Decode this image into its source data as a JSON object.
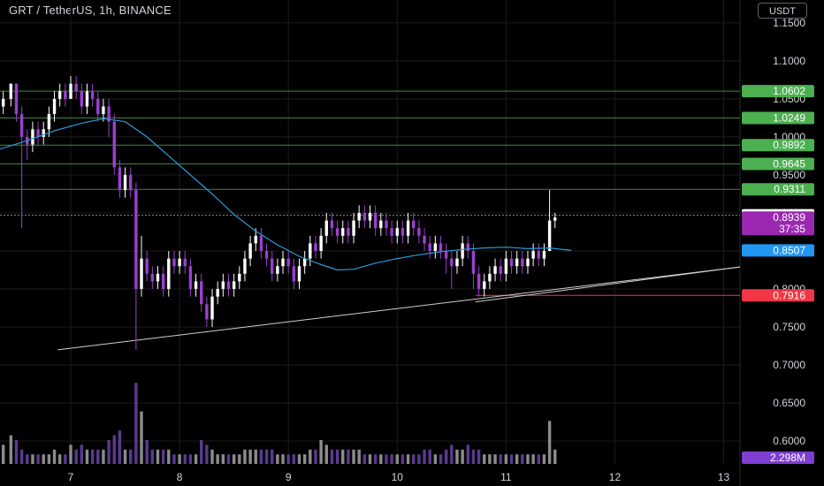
{
  "header": {
    "title": "GRT / TetherUS, 1h, BINANCE",
    "currency_button": "USDT"
  },
  "colors": {
    "bull": "#ffffff",
    "bear": "#9b3fd0",
    "ma": "#2a9ad8",
    "support": "#3a8a3a",
    "support_label": "#4caf50",
    "red_label": "#f23645",
    "blue_label": "#2196f3",
    "price_label": "#9c27b0",
    "volume_label": "#7e3fd0",
    "trend": "#cfcfcf"
  },
  "chart_data": {
    "type": "candlestick",
    "title": "GRT / TetherUS, 1h, BINANCE",
    "x_ticks": [
      "7",
      "8",
      "9",
      "10",
      "11",
      "12",
      "13"
    ],
    "y_ticks": [
      "1.1500",
      "1.1000",
      "1.0500",
      "1.0000",
      "0.9500",
      "0.9000",
      "0.8500",
      "0.8000",
      "0.7500",
      "0.7000",
      "0.6500",
      "0.6000"
    ],
    "ylim": [
      0.57,
      1.18
    ],
    "xlim": [
      6.35,
      13.15
    ],
    "levels": [
      {
        "value": 1.0602,
        "label": "1.0602",
        "style": "support"
      },
      {
        "value": 1.0249,
        "label": "1.0249",
        "style": "support"
      },
      {
        "value": 0.9892,
        "label": "0.9892",
        "style": "support"
      },
      {
        "value": 0.9645,
        "label": "0.9645",
        "style": "support"
      },
      {
        "value": 0.9311,
        "label": "0.9311",
        "style": "support"
      },
      {
        "value": 0.8969,
        "label": "0.8969",
        "style": "white"
      },
      {
        "value": 0.8939,
        "label": "0.8939",
        "style": "price"
      },
      {
        "value": 0.8507,
        "label": "0.8507",
        "style": "ma"
      },
      {
        "value": 0.7916,
        "label": "0.7916",
        "style": "red"
      }
    ],
    "countdown": "37:35",
    "volume_label": "2.298M",
    "trendlines": [
      {
        "x1": 6.88,
        "y1": 0.72,
        "x2": 13.15,
        "y2": 0.829
      },
      {
        "x1": 10.72,
        "y1": 0.783,
        "x2": 13.15,
        "y2": 0.829
      }
    ],
    "moving_average": [
      [
        6.35,
        0.984
      ],
      [
        6.6,
        0.995
      ],
      [
        6.85,
        1.008
      ],
      [
        7.1,
        1.018
      ],
      [
        7.3,
        1.024
      ],
      [
        7.5,
        1.02
      ],
      [
        7.7,
        1.0
      ],
      [
        7.9,
        0.975
      ],
      [
        8.1,
        0.95
      ],
      [
        8.3,
        0.925
      ],
      [
        8.5,
        0.898
      ],
      [
        8.7,
        0.876
      ],
      [
        8.9,
        0.858
      ],
      [
        9.1,
        0.843
      ],
      [
        9.3,
        0.832
      ],
      [
        9.45,
        0.825
      ],
      [
        9.6,
        0.826
      ],
      [
        9.8,
        0.834
      ],
      [
        10.0,
        0.84
      ],
      [
        10.2,
        0.845
      ],
      [
        10.4,
        0.849
      ],
      [
        10.6,
        0.852
      ],
      [
        10.8,
        0.854
      ],
      [
        11.0,
        0.855
      ],
      [
        11.2,
        0.853
      ],
      [
        11.4,
        0.854
      ],
      [
        11.6,
        0.8507
      ]
    ],
    "volume_scale": 0.9,
    "candles": [
      [
        6.38,
        1.04,
        1.05,
        1.03,
        1.06,
        0.4
      ],
      [
        6.45,
        1.05,
        1.07,
        1.04,
        1.07,
        0.6
      ],
      [
        6.5,
        1.07,
        1.03,
        1.02,
        1.07,
        0.5
      ],
      [
        6.55,
        1.03,
        1.0,
        0.88,
        1.04,
        0.3
      ],
      [
        6.6,
        1.0,
        0.99,
        0.97,
        1.01,
        0.2
      ],
      [
        6.65,
        0.99,
        1.01,
        0.98,
        1.02,
        0.2
      ],
      [
        6.7,
        1.01,
        1.0,
        0.99,
        1.02,
        0.2
      ],
      [
        6.75,
        1.0,
        1.01,
        0.99,
        1.02,
        0.2
      ],
      [
        6.8,
        1.01,
        1.03,
        1.0,
        1.04,
        0.2
      ],
      [
        6.85,
        1.03,
        1.05,
        1.02,
        1.06,
        0.3
      ],
      [
        6.9,
        1.05,
        1.06,
        1.04,
        1.07,
        0.2
      ],
      [
        6.95,
        1.06,
        1.05,
        1.04,
        1.07,
        0.2
      ],
      [
        7.0,
        1.05,
        1.07,
        1.05,
        1.08,
        0.4
      ],
      [
        7.05,
        1.07,
        1.06,
        1.05,
        1.08,
        0.3
      ],
      [
        7.1,
        1.06,
        1.04,
        1.03,
        1.07,
        0.4
      ],
      [
        7.15,
        1.04,
        1.06,
        1.03,
        1.07,
        0.3
      ],
      [
        7.2,
        1.06,
        1.05,
        1.04,
        1.07,
        0.3
      ],
      [
        7.25,
        1.05,
        1.03,
        1.02,
        1.06,
        0.3
      ],
      [
        7.3,
        1.03,
        1.04,
        1.02,
        1.05,
        0.3
      ],
      [
        7.35,
        1.04,
        1.02,
        1.0,
        1.05,
        0.5
      ],
      [
        7.4,
        1.02,
        0.96,
        0.95,
        1.03,
        0.6
      ],
      [
        7.45,
        0.96,
        0.93,
        0.92,
        0.97,
        0.7
      ],
      [
        7.5,
        0.93,
        0.95,
        0.92,
        0.96,
        0.3
      ],
      [
        7.55,
        0.95,
        0.93,
        0.92,
        0.96,
        0.3
      ],
      [
        7.6,
        0.93,
        0.8,
        0.72,
        0.94,
        1.7
      ],
      [
        7.65,
        0.8,
        0.84,
        0.79,
        0.87,
        1.1
      ],
      [
        7.7,
        0.84,
        0.82,
        0.81,
        0.85,
        0.5
      ],
      [
        7.75,
        0.82,
        0.81,
        0.8,
        0.83,
        0.3
      ],
      [
        7.8,
        0.81,
        0.82,
        0.8,
        0.83,
        0.3
      ],
      [
        7.85,
        0.82,
        0.8,
        0.79,
        0.83,
        0.3
      ],
      [
        7.9,
        0.8,
        0.84,
        0.79,
        0.85,
        0.3
      ],
      [
        7.95,
        0.84,
        0.83,
        0.82,
        0.85,
        0.2
      ],
      [
        8.0,
        0.83,
        0.84,
        0.82,
        0.85,
        0.2
      ],
      [
        8.05,
        0.84,
        0.83,
        0.82,
        0.85,
        0.2
      ],
      [
        8.1,
        0.83,
        0.8,
        0.79,
        0.84,
        0.2
      ],
      [
        8.15,
        0.8,
        0.81,
        0.79,
        0.82,
        0.2
      ],
      [
        8.2,
        0.81,
        0.78,
        0.77,
        0.82,
        0.5
      ],
      [
        8.25,
        0.78,
        0.76,
        0.75,
        0.79,
        0.4
      ],
      [
        8.3,
        0.76,
        0.79,
        0.75,
        0.8,
        0.3
      ],
      [
        8.35,
        0.79,
        0.8,
        0.78,
        0.81,
        0.2
      ],
      [
        8.4,
        0.8,
        0.81,
        0.79,
        0.82,
        0.2
      ],
      [
        8.45,
        0.81,
        0.8,
        0.79,
        0.82,
        0.2
      ],
      [
        8.5,
        0.8,
        0.81,
        0.79,
        0.82,
        0.2
      ],
      [
        8.55,
        0.81,
        0.82,
        0.8,
        0.83,
        0.2
      ],
      [
        8.6,
        0.82,
        0.84,
        0.81,
        0.85,
        0.3
      ],
      [
        8.65,
        0.84,
        0.86,
        0.83,
        0.87,
        0.3
      ],
      [
        8.7,
        0.86,
        0.87,
        0.85,
        0.88,
        0.3
      ],
      [
        8.75,
        0.87,
        0.85,
        0.84,
        0.88,
        0.3
      ],
      [
        8.8,
        0.85,
        0.84,
        0.83,
        0.86,
        0.3
      ],
      [
        8.85,
        0.84,
        0.82,
        0.81,
        0.85,
        0.3
      ],
      [
        8.9,
        0.82,
        0.83,
        0.81,
        0.84,
        0.2
      ],
      [
        8.95,
        0.83,
        0.84,
        0.82,
        0.85,
        0.2
      ],
      [
        9.0,
        0.84,
        0.83,
        0.82,
        0.85,
        0.2
      ],
      [
        9.05,
        0.83,
        0.81,
        0.8,
        0.84,
        0.2
      ],
      [
        9.1,
        0.81,
        0.83,
        0.8,
        0.84,
        0.2
      ],
      [
        9.15,
        0.83,
        0.84,
        0.82,
        0.85,
        0.2
      ],
      [
        9.2,
        0.84,
        0.86,
        0.83,
        0.87,
        0.3
      ],
      [
        9.25,
        0.86,
        0.85,
        0.84,
        0.87,
        0.3
      ],
      [
        9.3,
        0.85,
        0.87,
        0.84,
        0.88,
        0.5
      ],
      [
        9.35,
        0.87,
        0.89,
        0.86,
        0.9,
        0.4
      ],
      [
        9.4,
        0.89,
        0.88,
        0.87,
        0.9,
        0.3
      ],
      [
        9.45,
        0.88,
        0.87,
        0.86,
        0.89,
        0.3
      ],
      [
        9.5,
        0.87,
        0.88,
        0.86,
        0.89,
        0.3
      ],
      [
        9.55,
        0.88,
        0.87,
        0.86,
        0.89,
        0.3
      ],
      [
        9.6,
        0.87,
        0.89,
        0.86,
        0.9,
        0.3
      ],
      [
        9.65,
        0.89,
        0.9,
        0.88,
        0.91,
        0.3
      ],
      [
        9.7,
        0.9,
        0.89,
        0.88,
        0.91,
        0.2
      ],
      [
        9.75,
        0.89,
        0.9,
        0.88,
        0.91,
        0.2
      ],
      [
        9.8,
        0.9,
        0.88,
        0.87,
        0.91,
        0.2
      ],
      [
        9.85,
        0.88,
        0.89,
        0.87,
        0.9,
        0.2
      ],
      [
        9.9,
        0.89,
        0.88,
        0.87,
        0.9,
        0.2
      ],
      [
        9.95,
        0.88,
        0.87,
        0.86,
        0.89,
        0.2
      ],
      [
        10.0,
        0.87,
        0.88,
        0.86,
        0.89,
        0.2
      ],
      [
        10.05,
        0.88,
        0.87,
        0.86,
        0.89,
        0.2
      ],
      [
        10.1,
        0.87,
        0.89,
        0.86,
        0.9,
        0.2
      ],
      [
        10.15,
        0.89,
        0.88,
        0.87,
        0.9,
        0.2
      ],
      [
        10.2,
        0.88,
        0.87,
        0.86,
        0.89,
        0.2
      ],
      [
        10.25,
        0.87,
        0.86,
        0.85,
        0.88,
        0.3
      ],
      [
        10.3,
        0.86,
        0.85,
        0.84,
        0.87,
        0.3
      ],
      [
        10.35,
        0.85,
        0.86,
        0.84,
        0.87,
        0.2
      ],
      [
        10.4,
        0.86,
        0.85,
        0.84,
        0.87,
        0.2
      ],
      [
        10.45,
        0.85,
        0.84,
        0.82,
        0.86,
        0.3
      ],
      [
        10.5,
        0.84,
        0.83,
        0.8,
        0.85,
        0.4
      ],
      [
        10.55,
        0.83,
        0.84,
        0.82,
        0.85,
        0.3
      ],
      [
        10.6,
        0.84,
        0.86,
        0.83,
        0.87,
        0.3
      ],
      [
        10.65,
        0.86,
        0.85,
        0.84,
        0.87,
        0.4
      ],
      [
        10.7,
        0.85,
        0.82,
        0.8,
        0.86,
        0.3
      ],
      [
        10.75,
        0.82,
        0.8,
        0.79,
        0.83,
        0.3
      ],
      [
        10.8,
        0.8,
        0.81,
        0.79,
        0.82,
        0.2
      ],
      [
        10.85,
        0.81,
        0.82,
        0.8,
        0.83,
        0.2
      ],
      [
        10.9,
        0.82,
        0.83,
        0.81,
        0.84,
        0.2
      ],
      [
        10.95,
        0.83,
        0.82,
        0.81,
        0.84,
        0.2
      ],
      [
        11.0,
        0.82,
        0.84,
        0.81,
        0.85,
        0.2
      ],
      [
        11.05,
        0.84,
        0.83,
        0.82,
        0.85,
        0.2
      ],
      [
        11.1,
        0.83,
        0.84,
        0.82,
        0.85,
        0.2
      ],
      [
        11.15,
        0.84,
        0.83,
        0.82,
        0.85,
        0.2
      ],
      [
        11.2,
        0.83,
        0.84,
        0.82,
        0.85,
        0.2
      ],
      [
        11.25,
        0.84,
        0.85,
        0.83,
        0.86,
        0.2
      ],
      [
        11.3,
        0.85,
        0.84,
        0.83,
        0.86,
        0.2
      ],
      [
        11.35,
        0.84,
        0.85,
        0.83,
        0.86,
        0.2
      ],
      [
        11.4,
        0.85,
        0.89,
        0.85,
        0.93,
        0.9
      ],
      [
        11.45,
        0.89,
        0.8939,
        0.88,
        0.9,
        0.3
      ]
    ]
  }
}
